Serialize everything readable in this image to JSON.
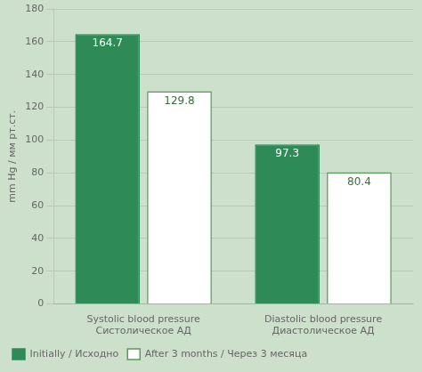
{
  "chart_data": {
    "type": "bar",
    "categories": [
      "Systolic blood pressure\nСистолическое АД",
      "Diastolic blood pressure\nДиастолическое АД"
    ],
    "series": [
      {
        "name": "Initially / Исходно",
        "color": "#2e8b57",
        "values": [
          164.7,
          97.3
        ]
      },
      {
        "name": "After 3 months / Через 3 месяца",
        "color": "#ffffff",
        "values": [
          129.8,
          80.4
        ]
      }
    ],
    "ylabel": "mm Hg / мм рт.ст.",
    "ylim": [
      0,
      180
    ],
    "yticks": [
      0,
      20,
      40,
      60,
      80,
      100,
      120,
      140,
      160,
      180
    ],
    "grid": true,
    "legend": "bottom",
    "data_labels": true
  }
}
